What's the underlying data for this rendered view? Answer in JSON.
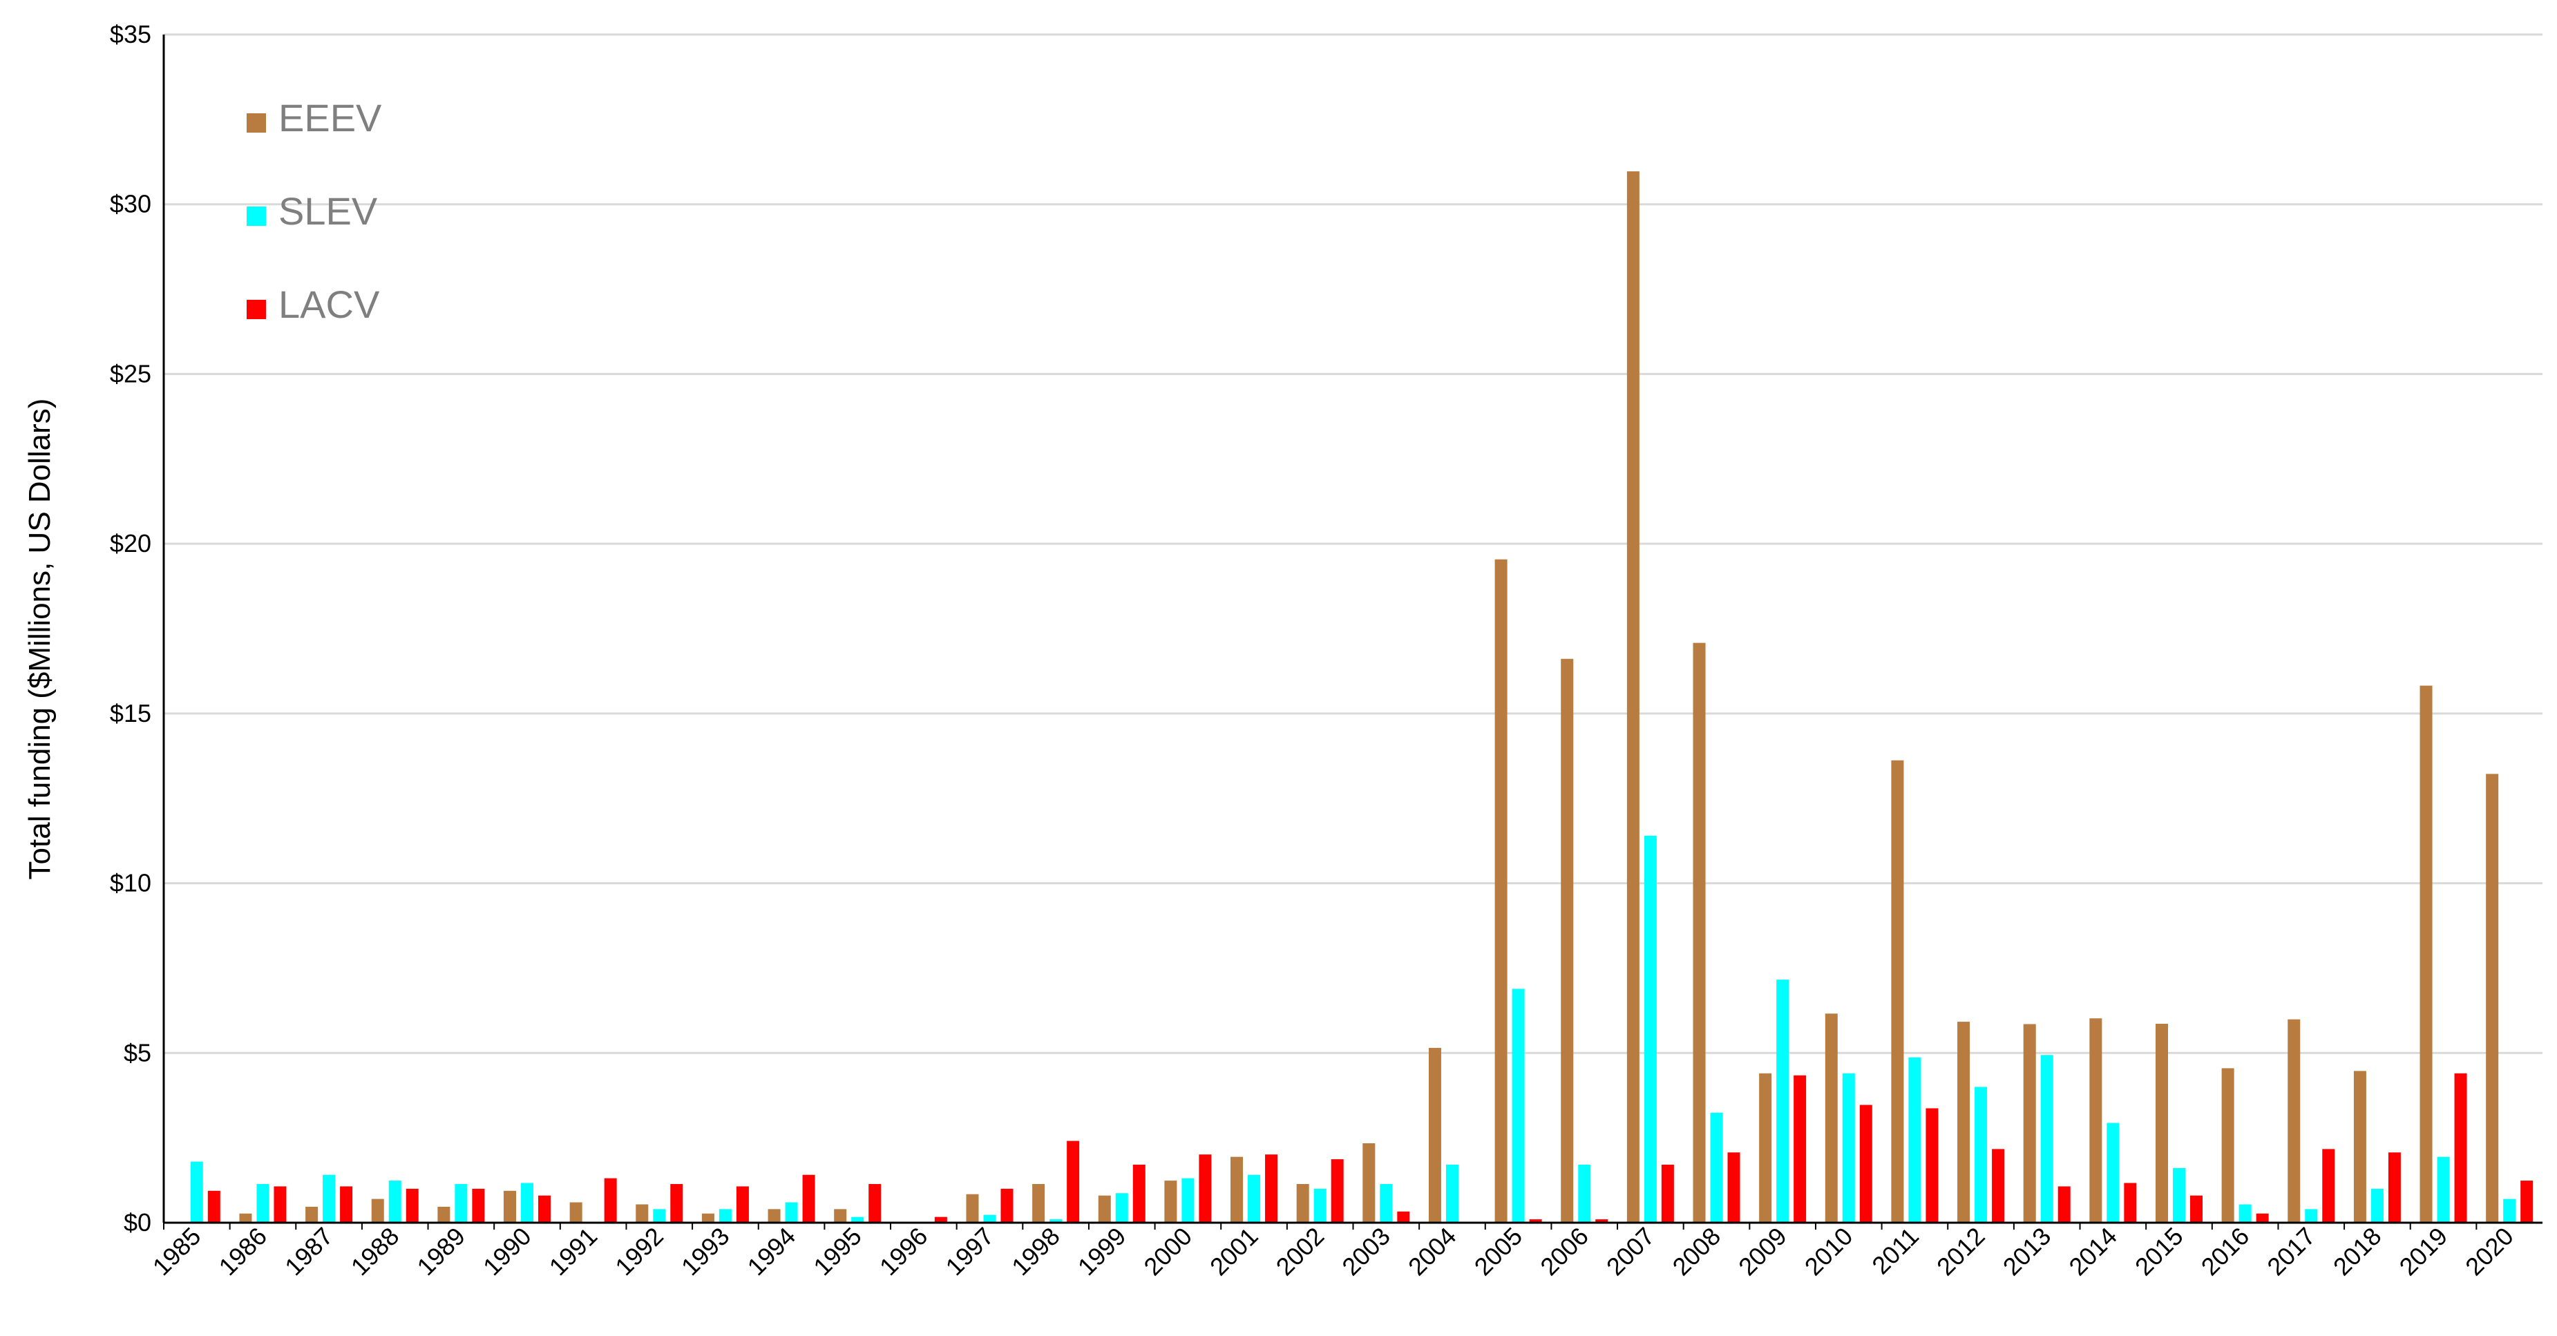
{
  "chart_data": {
    "type": "bar",
    "title": "",
    "xlabel": "",
    "ylabel": "Total funding ($Millions, US Dollars)",
    "ylim": [
      0,
      35
    ],
    "yticks": [
      {
        "value": 0,
        "label": "$0"
      },
      {
        "value": 5,
        "label": "$5"
      },
      {
        "value": 10,
        "label": "$10"
      },
      {
        "value": 15,
        "label": "$15"
      },
      {
        "value": 20,
        "label": "$20"
      },
      {
        "value": 25,
        "label": "$25"
      },
      {
        "value": 30,
        "label": "$30"
      },
      {
        "value": 35,
        "label": "$35"
      }
    ],
    "grid": true,
    "legend_position": "top-left",
    "categories": [
      "1985",
      "1986",
      "1987",
      "1988",
      "1989",
      "1990",
      "1991",
      "1992",
      "1993",
      "1994",
      "1995",
      "1996",
      "1997",
      "1998",
      "1999",
      "2000",
      "2001",
      "2002",
      "2003",
      "2004",
      "2005",
      "2006",
      "2007",
      "2008",
      "2009",
      "2010",
      "2011",
      "2012",
      "2013",
      "2014",
      "2015",
      "2016",
      "2017",
      "2018",
      "2019",
      "2020"
    ],
    "series": [
      {
        "name": "EEEV",
        "color": "#b87b40",
        "values": [
          0,
          0.27,
          0.47,
          0.7,
          0.47,
          0.94,
          0.6,
          0.54,
          0.27,
          0.4,
          0.4,
          0,
          0.84,
          1.14,
          0.8,
          1.24,
          1.94,
          1.14,
          2.34,
          5.15,
          19.54,
          16.61,
          30.97,
          17.08,
          4.4,
          6.16,
          13.62,
          5.92,
          5.85,
          6.02,
          5.86,
          4.55,
          5.99,
          4.47,
          15.82,
          13.22
        ]
      },
      {
        "name": "SLEV",
        "color": "#00ffff",
        "values": [
          1.8,
          1.14,
          1.41,
          1.24,
          1.14,
          1.17,
          0,
          0.4,
          0.4,
          0.6,
          0.17,
          0,
          0.23,
          0.1,
          0.87,
          1.31,
          1.41,
          1.0,
          1.14,
          1.71,
          6.89,
          1.71,
          11.4,
          3.24,
          7.16,
          4.4,
          4.87,
          4.0,
          4.94,
          2.94,
          1.61,
          0.54,
          0.4,
          1.0,
          1.94,
          0.7
        ]
      },
      {
        "name": "LACV",
        "color": "#ff0000",
        "values": [
          0.94,
          1.07,
          1.07,
          1.0,
          1.0,
          0.8,
          1.31,
          1.14,
          1.07,
          1.41,
          1.14,
          0.17,
          1.0,
          2.41,
          1.71,
          2.01,
          2.01,
          1.87,
          0.33,
          0,
          0.1,
          0.1,
          1.71,
          2.07,
          4.34,
          3.47,
          3.37,
          2.17,
          1.07,
          1.17,
          0.8,
          0.27,
          2.17,
          2.07,
          4.4,
          1.24
        ]
      }
    ]
  }
}
